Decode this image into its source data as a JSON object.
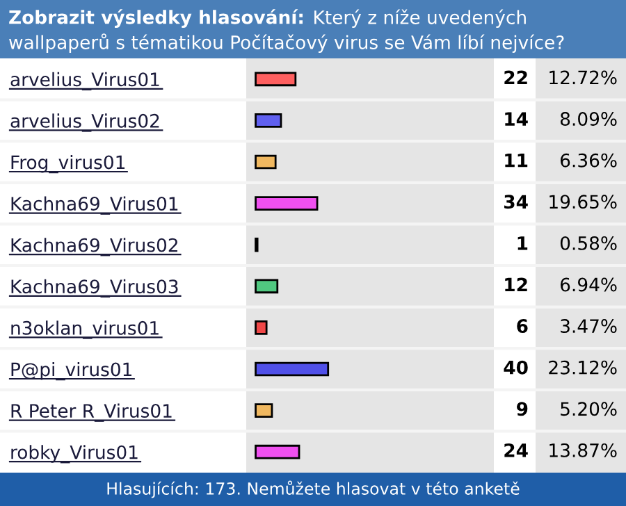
{
  "chart_data": {
    "type": "bar",
    "orientation": "horizontal",
    "title": "Zobrazit výsledky hlasování:",
    "subtitle": "Který z níže uvedených wallpaperů s tématikou Počítačový virus se Vám líbí nejvíce?",
    "categories": [
      "arvelius_Virus01",
      "arvelius_Virus02",
      "Frog_virus01",
      "Kachna69_Virus01",
      "Kachna69_Virus02",
      "Kachna69_Virus03",
      "n3oklan_virus01",
      "P@pi_virus01",
      "R Peter R_Virus01",
      "robky_Virus01"
    ],
    "values": [
      12.72,
      8.09,
      6.36,
      19.65,
      0.58,
      6.94,
      3.47,
      23.12,
      5.2,
      13.87
    ],
    "colors": [
      "#ff6060",
      "#6060f0",
      "#f0b860",
      "#f050f0",
      "#40d8d8",
      "#50c880",
      "#f04848",
      "#5050e8",
      "#f0b860",
      "#f050f0"
    ],
    "data_labels": true,
    "value_labels": [
      "12.72%",
      "8.09%",
      "6.36%",
      "19.65%",
      "0.58%",
      "6.94%",
      "3.47%",
      "23.12%",
      "5.20%",
      "13.87%"
    ],
    "xlim": [
      -3,
      76
    ],
    "tick_labels": "y",
    "annotations": [
      "Hlasujících: 173. Nemůžete hlasovat v této anketě",
      "22",
      "14",
      "11",
      "34",
      "1",
      "12",
      "6",
      "40",
      "9",
      "24"
    ]
  }
}
